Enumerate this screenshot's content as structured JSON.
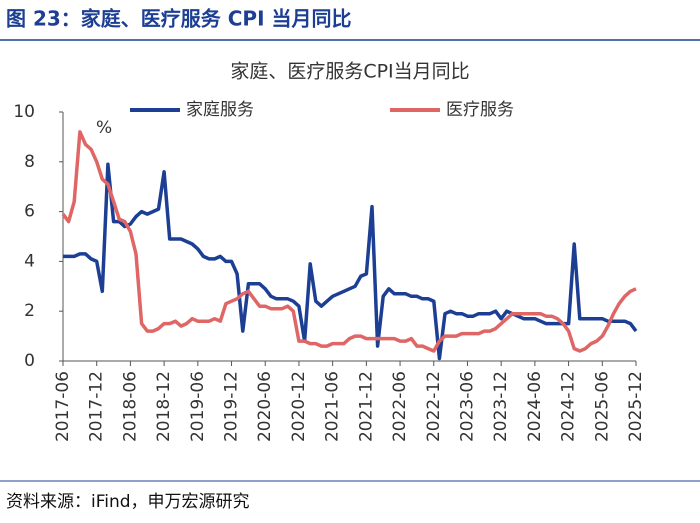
{
  "header": "图 23：家庭、医疗服务 CPI 当月同比",
  "source": "资料来源：iFind，申万宏源研究",
  "chart_data": {
    "type": "line",
    "title": "家庭、医疗服务CPI当月同比",
    "y_unit": "%",
    "categories": [
      "2017-06",
      null,
      null,
      null,
      null,
      null,
      "2017-12",
      null,
      null,
      null,
      null,
      null,
      "2018-06",
      null,
      null,
      null,
      null,
      null,
      "2018-12",
      null,
      null,
      null,
      null,
      null,
      "2019-06",
      null,
      null,
      null,
      null,
      null,
      "2019-12",
      null,
      null,
      null,
      null,
      null,
      "2020-06",
      null,
      null,
      null,
      null,
      null,
      "2020-12",
      null,
      null,
      null,
      null,
      null,
      "2021-06",
      null,
      null,
      null,
      null,
      null,
      "2021-12",
      null,
      null,
      null,
      null,
      null,
      "2022-06",
      null,
      null,
      null,
      null,
      null,
      "2022-12",
      null,
      null,
      null,
      null,
      null,
      "2023-06",
      null,
      null,
      null,
      null,
      null,
      "2023-12",
      null,
      null,
      null,
      null,
      null,
      "2024-06",
      null,
      null,
      null,
      null,
      null,
      "2024-12",
      null,
      null,
      null,
      null,
      null,
      "2025-06",
      null,
      null,
      null,
      null,
      null,
      "2025-12"
    ],
    "series": [
      {
        "name": "家庭服务",
        "color": "#1c3f94",
        "values": [
          4.2,
          4.2,
          4.2,
          4.3,
          4.3,
          4.1,
          4.0,
          2.8,
          7.9,
          5.6,
          5.6,
          5.4,
          5.5,
          5.8,
          6.0,
          5.9,
          6.0,
          6.1,
          7.6,
          4.9,
          4.9,
          4.9,
          4.8,
          4.7,
          4.5,
          4.2,
          4.1,
          4.1,
          4.2,
          4.0,
          4.0,
          3.5,
          1.2,
          3.1,
          3.1,
          3.1,
          2.9,
          2.6,
          2.5,
          2.5,
          2.5,
          2.4,
          2.2,
          0.8,
          3.9,
          2.4,
          2.2,
          2.4,
          2.6,
          2.7,
          2.8,
          2.9,
          3.0,
          3.4,
          3.5,
          6.2,
          0.6,
          2.6,
          2.9,
          2.7,
          2.7,
          2.7,
          2.6,
          2.6,
          2.5,
          2.5,
          2.4,
          0.1,
          1.9,
          2.0,
          1.9,
          1.9,
          1.8,
          1.8,
          1.9,
          1.9,
          1.9,
          2.0,
          1.7,
          2.0,
          1.9,
          1.8,
          1.7,
          1.7,
          1.7,
          1.6,
          1.5,
          1.5,
          1.5,
          1.5,
          1.5,
          4.7,
          1.7,
          1.7,
          1.7,
          1.7,
          1.7,
          1.6,
          1.6,
          1.6,
          1.6,
          1.5,
          1.2
        ]
      },
      {
        "name": "医疗服务",
        "color": "#e06666",
        "values": [
          5.9,
          5.6,
          6.4,
          9.2,
          8.7,
          8.5,
          8.0,
          7.3,
          7.1,
          6.4,
          5.7,
          5.6,
          5.2,
          4.3,
          1.5,
          1.2,
          1.2,
          1.3,
          1.5,
          1.5,
          1.6,
          1.4,
          1.5,
          1.7,
          1.6,
          1.6,
          1.6,
          1.7,
          1.6,
          2.3,
          2.4,
          2.5,
          2.7,
          2.8,
          2.5,
          2.2,
          2.2,
          2.1,
          2.1,
          2.1,
          2.2,
          2.0,
          0.8,
          0.8,
          0.7,
          0.7,
          0.6,
          0.6,
          0.7,
          0.7,
          0.7,
          0.9,
          1.0,
          1.0,
          0.9,
          0.9,
          0.9,
          0.9,
          0.9,
          0.9,
          0.8,
          0.8,
          0.9,
          0.6,
          0.6,
          0.5,
          0.4,
          0.8,
          1.0,
          1.0,
          1.0,
          1.1,
          1.1,
          1.1,
          1.1,
          1.2,
          1.2,
          1.3,
          1.5,
          1.7,
          1.9,
          1.9,
          1.9,
          1.9,
          1.9,
          1.9,
          1.8,
          1.8,
          1.7,
          1.5,
          1.2,
          0.5,
          0.4,
          0.5,
          0.7,
          0.8,
          1.0,
          1.4,
          1.9,
          2.3,
          2.6,
          2.8,
          2.9
        ]
      }
    ],
    "ylim": [
      0,
      10
    ],
    "yticks": [
      0,
      2,
      4,
      6,
      8,
      10
    ],
    "grid": false,
    "legend": "top"
  }
}
